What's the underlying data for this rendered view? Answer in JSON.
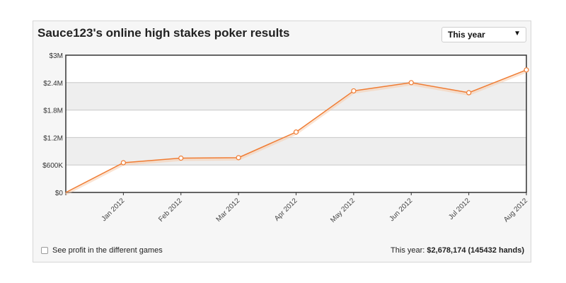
{
  "header": {
    "title": "Sauce123's online high stakes poker results",
    "period_select": {
      "selected": "This year",
      "icon": "caret-down-icon"
    }
  },
  "footer": {
    "toggle_label": "See profit in the different games",
    "summary_prefix": "This year:",
    "summary_value": "$2,678,174 (145432 hands)"
  },
  "colors": {
    "line": "#f07c33",
    "band": "#eeeeee",
    "grid": "#c8c8c8"
  },
  "chart_data": {
    "type": "line",
    "categories": [
      "",
      "Jan 2012",
      "Feb 2012",
      "Mar 2012",
      "Apr 2012",
      "May 2012",
      "Jun 2012",
      "Jul 2012",
      "Aug 2012"
    ],
    "values": [
      0,
      650000,
      750000,
      760000,
      1320000,
      2220000,
      2400000,
      2180000,
      2678174
    ],
    "y_ticks": [
      0,
      600000,
      1200000,
      1800000,
      2400000,
      3000000
    ],
    "y_tick_labels": [
      "$0",
      "$600K",
      "$1.2M",
      "$1.8M",
      "$2.4M",
      "$3M"
    ],
    "ylim": [
      0,
      3000000
    ],
    "grid": true,
    "title": "Sauce123's online high stakes poker results"
  }
}
